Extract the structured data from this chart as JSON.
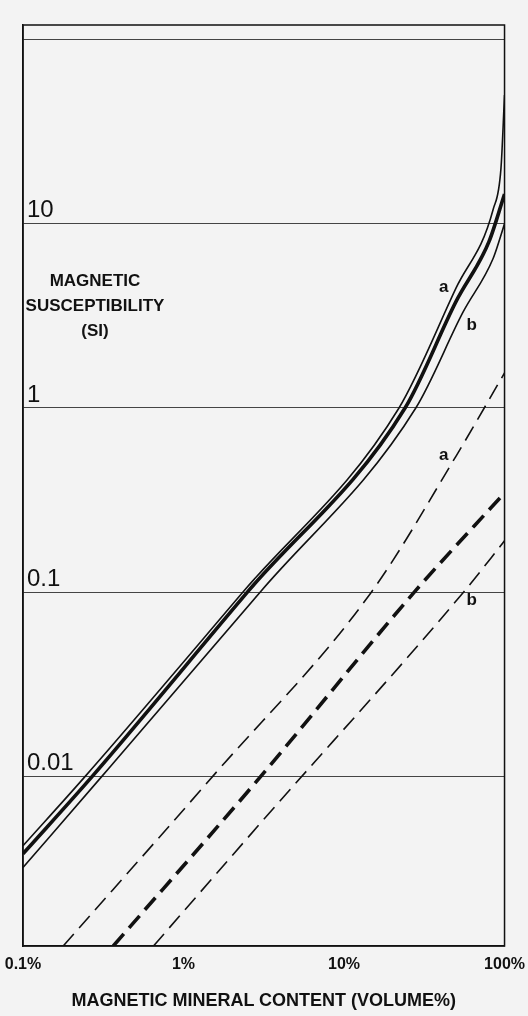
{
  "chart_data": {
    "type": "line",
    "xlabel": "MAGNETIC MINERAL CONTENT (VOLUME%)",
    "ylabel": "MAGNETIC SUSCEPTIBILITY (SI)",
    "log": "xy",
    "grid": "y",
    "legend": false,
    "marker": "none",
    "xlim": [
      0.1,
      100
    ],
    "xticks": [
      {
        "value": 0.1,
        "label": "0.1%"
      },
      {
        "value": 1,
        "label": "1%"
      },
      {
        "value": 10,
        "label": "10%"
      },
      {
        "value": 100,
        "label": "100%"
      }
    ],
    "ylim": [
      0.0012,
      120
    ],
    "yticks": [
      0.01,
      0.1,
      1,
      10,
      {
        "value": 100,
        "label": null
      }
    ],
    "series": [
      {
        "name": "a",
        "color": "#111111",
        "line_style": "solid",
        "x": [
          0.1,
          0.244,
          2.34,
          22,
          50,
          85,
          95,
          100
        ],
        "values": [
          0.0042,
          0.01,
          0.1,
          1,
          4.5,
          12,
          20,
          50
        ]
      },
      {
        "color": "#111111",
        "line_style": "solid",
        "x": [
          0.1,
          0.27,
          2.5,
          24,
          50,
          80,
          100
        ],
        "values": [
          0.0038,
          0.01,
          0.1,
          1,
          3.8,
          8,
          14.5
        ]
      },
      {
        "name": "b",
        "color": "#111111",
        "line_style": "solid",
        "x": [
          0.1,
          0.31,
          3,
          28,
          55,
          85,
          100
        ],
        "values": [
          0.0032,
          0.01,
          0.1,
          1,
          3.3,
          6.5,
          10
        ]
      },
      {
        "name": "a",
        "color": "#111111",
        "line_style": "dashed",
        "x": [
          0.178,
          1.52,
          14.8,
          50,
          100
        ],
        "values": [
          0.0012,
          0.01,
          0.1,
          0.55,
          1.55
        ]
      },
      {
        "color": "#111111",
        "line_style": "dashed",
        "x": [
          0.365,
          3.03,
          27.4,
          100
        ],
        "values": [
          0.0012,
          0.01,
          0.1,
          0.346
        ]
      },
      {
        "name": "b",
        "color": "#111111",
        "line_style": "dashed",
        "x": [
          0.65,
          3.03,
          55.5,
          100
        ],
        "values": [
          0.0012,
          0.0056,
          0.1,
          0.19
        ]
      }
    ]
  }
}
